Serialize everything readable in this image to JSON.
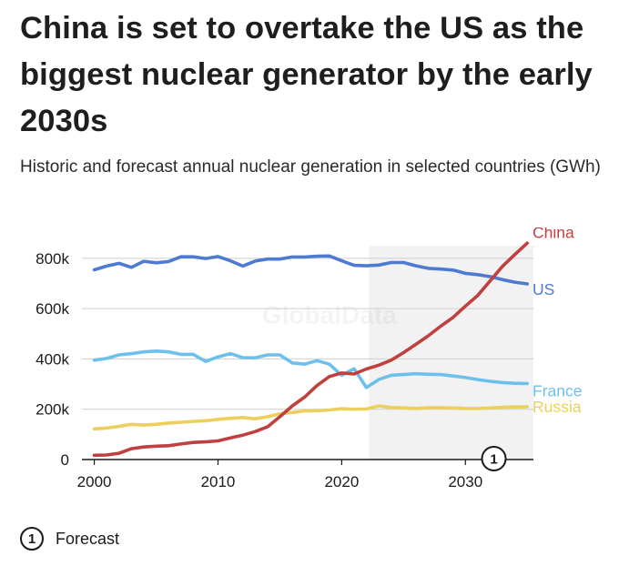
{
  "title": "China is set to overtake the US as the biggest nuclear generator by the early 2030s",
  "subtitle": "Historic and forecast annual nuclear generation in selected countries (GWh)",
  "watermark": "GlobalData",
  "legend": {
    "marker": "1",
    "label": "Forecast"
  },
  "colors": {
    "China": "#c0403f",
    "US": "#4d7bd2",
    "France": "#6ec0ec",
    "Russia": "#ecd05c",
    "forecast_bg": "#f2f2f2"
  },
  "chart_data": {
    "type": "line",
    "title": "China is set to overtake the US as the biggest nuclear generator by the early 2030s",
    "ylabel": "GWh",
    "xlim": [
      1999,
      2035.5
    ],
    "ylim": [
      0,
      850000
    ],
    "x_ticks": [
      2000,
      2010,
      2020,
      2030
    ],
    "y_ticks": [
      0,
      200000,
      400000,
      600000,
      800000
    ],
    "y_tick_labels": [
      "0",
      "200k",
      "400k",
      "600k",
      "800k"
    ],
    "forecast_start": 2022.2,
    "forecast_marker": "1",
    "forecast_marker_x": 2032.3,
    "years": [
      2000,
      2001,
      2002,
      2003,
      2004,
      2005,
      2006,
      2007,
      2008,
      2009,
      2010,
      2011,
      2012,
      2013,
      2014,
      2015,
      2016,
      2017,
      2018,
      2019,
      2020,
      2021,
      2022,
      2023,
      2024,
      2025,
      2026,
      2027,
      2028,
      2029,
      2030,
      2031,
      2032,
      2033,
      2034,
      2035
    ],
    "series": [
      {
        "name": "China",
        "values": [
          17000,
          18000,
          25000,
          43000,
          50000,
          53000,
          55000,
          62000,
          68000,
          70000,
          74000,
          86000,
          97000,
          111000,
          130000,
          170000,
          213000,
          248000,
          294000,
          330000,
          344000,
          340000,
          360000,
          375000,
          395000,
          425000,
          458000,
          492000,
          530000,
          565000,
          610000,
          652000,
          710000,
          768000,
          815000,
          860000
        ]
      },
      {
        "name": "US",
        "values": [
          754000,
          769000,
          780000,
          764000,
          788000,
          782000,
          787000,
          806000,
          806000,
          799000,
          807000,
          790000,
          769000,
          789000,
          797000,
          797000,
          805000,
          805000,
          808000,
          809000,
          790000,
          772000,
          770000,
          773000,
          783000,
          783000,
          770000,
          760000,
          757000,
          753000,
          740000,
          735000,
          727000,
          715000,
          705000,
          698000
        ]
      },
      {
        "name": "France",
        "values": [
          395000,
          402000,
          416000,
          421000,
          428000,
          431000,
          428000,
          418000,
          418000,
          390000,
          408000,
          421000,
          405000,
          404000,
          416000,
          416000,
          384000,
          379000,
          393000,
          379000,
          335000,
          361000,
          286000,
          318000,
          335000,
          338000,
          341000,
          339000,
          338000,
          332000,
          326000,
          318000,
          311000,
          306000,
          303000,
          302000
        ]
      },
      {
        "name": "Russia",
        "values": [
          122000,
          125000,
          132000,
          140000,
          137000,
          140000,
          145000,
          148000,
          152000,
          154000,
          160000,
          164000,
          167000,
          162000,
          170000,
          182000,
          187000,
          193000,
          194000,
          197000,
          202000,
          200000,
          201000,
          213000,
          207000,
          205000,
          203000,
          206000,
          206000,
          205000,
          203000,
          203000,
          205000,
          208000,
          209000,
          210000
        ]
      }
    ]
  }
}
